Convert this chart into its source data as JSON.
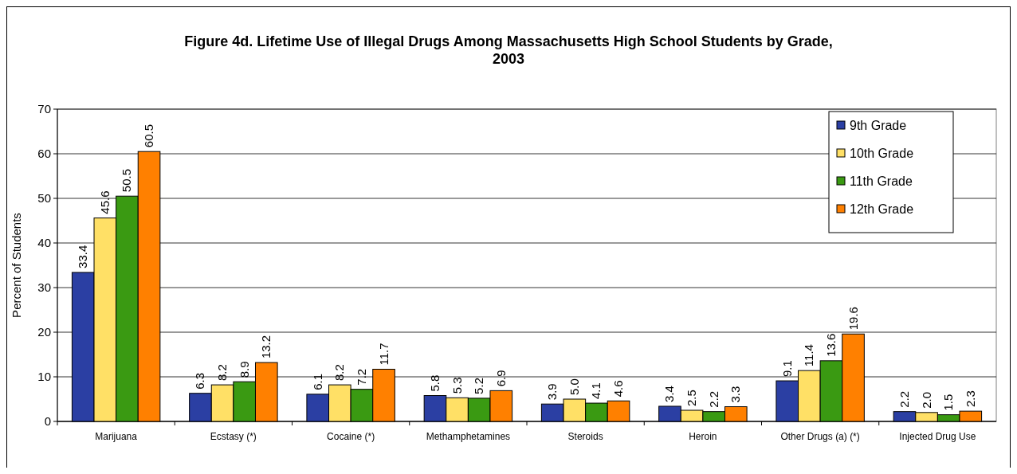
{
  "chart_data": {
    "type": "bar",
    "title": "Figure 4d. Lifetime Use of Illegal Drugs Among Massachusetts High School Students by Grade, 2003",
    "ylabel": "Percent of Students",
    "categories": [
      "Marijuana",
      "Ecstasy (*)",
      "Cocaine (*)",
      "Methamphetamines",
      "Steroids",
      "Heroin",
      "Other Drugs (a) (*)",
      "Injected Drug Use"
    ],
    "series": [
      {
        "name": "9th Grade",
        "color": "#2b3fa3",
        "values": [
          33.4,
          6.3,
          6.1,
          5.8,
          3.9,
          3.4,
          9.1,
          2.2
        ],
        "value_labels": [
          "33.4",
          "6.3",
          "6.1",
          "5.8",
          "3.9",
          "3.4",
          "9.1",
          "2.2"
        ]
      },
      {
        "name": "10th Grade",
        "color": "#ffe066",
        "values": [
          45.6,
          8.2,
          8.2,
          5.3,
          5.0,
          2.5,
          11.4,
          2.0
        ],
        "value_labels": [
          "45.6",
          "8.2",
          "8.2",
          "5.3",
          "5.0",
          "2.5",
          "11.4",
          "2.0"
        ]
      },
      {
        "name": "11th Grade",
        "color": "#3a9a12",
        "values": [
          50.5,
          8.9,
          7.2,
          5.2,
          4.1,
          2.2,
          13.6,
          1.5
        ],
        "value_labels": [
          "50.5",
          "8.9",
          "7.2",
          "5.2",
          "4.1",
          "2.2",
          "13.6",
          "1.5"
        ]
      },
      {
        "name": "12th Grade",
        "color": "#ff8000",
        "values": [
          60.5,
          13.2,
          11.7,
          6.9,
          4.6,
          3.3,
          19.6,
          2.3
        ],
        "value_labels": [
          "60.5",
          "13.2",
          "11.7",
          "6.9",
          "4.6",
          "3.3",
          "19.6",
          "2.3"
        ]
      }
    ],
    "ylim": [
      0,
      70
    ],
    "yticks": [
      0,
      10,
      20,
      30,
      40,
      50,
      60,
      70
    ],
    "grid": "y",
    "legend": "top right"
  }
}
